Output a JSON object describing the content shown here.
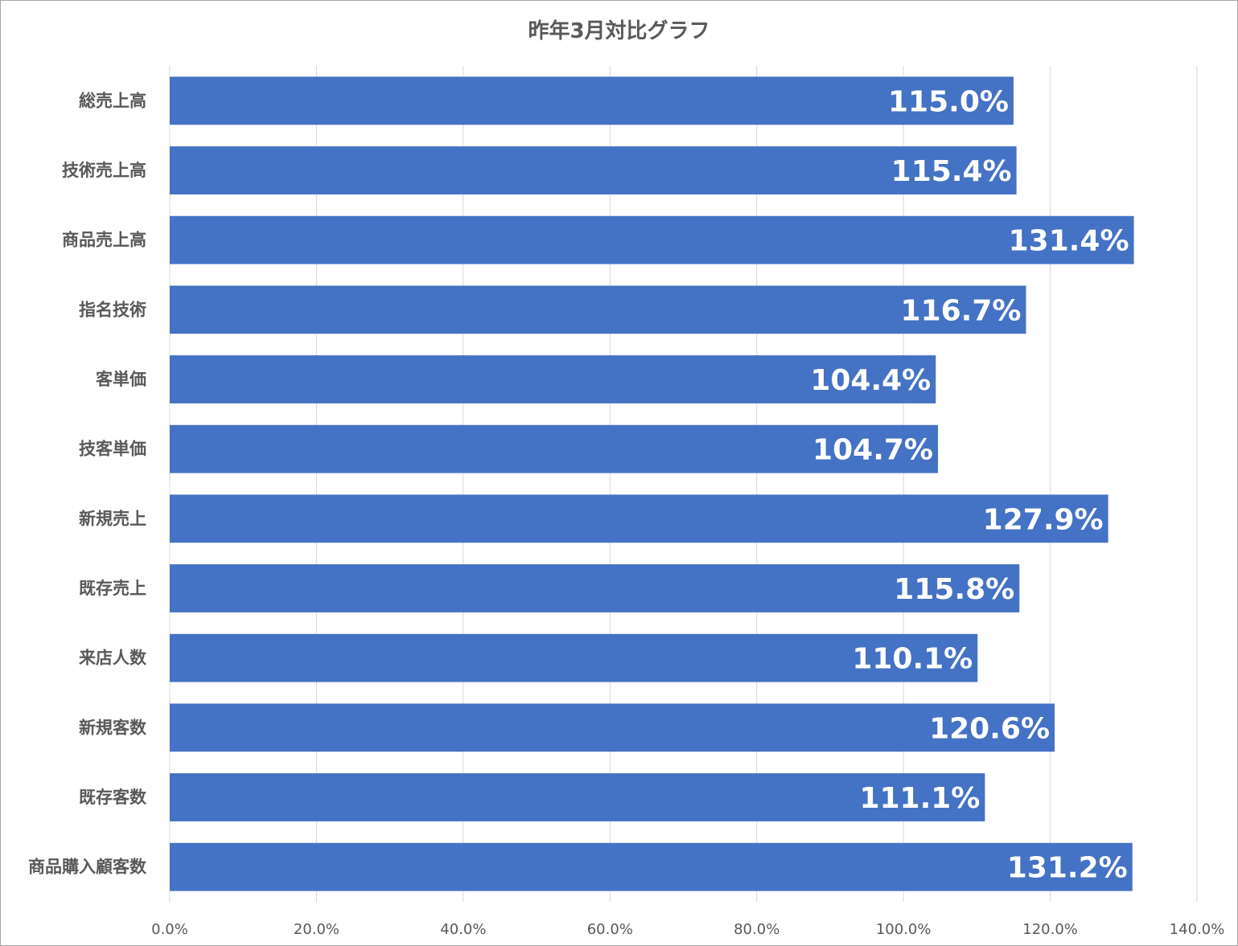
{
  "chart_data": {
    "type": "bar",
    "orientation": "horizontal",
    "title": "昨年3月対比グラフ",
    "categories": [
      "総売上高",
      "技術売上高",
      "商品売上高",
      "指名技術",
      "客単価",
      "技客単価",
      "新規売上",
      "既存売上",
      "来店人数",
      "新規客数",
      "既存客数",
      "商品購入顧客数"
    ],
    "values": [
      115.0,
      115.4,
      131.4,
      116.7,
      104.4,
      104.7,
      127.9,
      115.8,
      110.1,
      120.6,
      111.1,
      131.2
    ],
    "value_labels": [
      "115.0%",
      "115.4%",
      "131.4%",
      "116.7%",
      "104.4%",
      "104.7%",
      "127.9%",
      "115.8%",
      "110.1%",
      "120.6%",
      "111.1%",
      "131.2%"
    ],
    "x_ticks": [
      0,
      20,
      40,
      60,
      80,
      100,
      120,
      140
    ],
    "x_tick_labels": [
      "0.0%",
      "20.0%",
      "40.0%",
      "60.0%",
      "80.0%",
      "100.0%",
      "120.0%",
      "140.0%"
    ],
    "xlim": [
      0,
      140
    ],
    "grid": true,
    "legend": "none",
    "bar_color": "#4472c4"
  }
}
